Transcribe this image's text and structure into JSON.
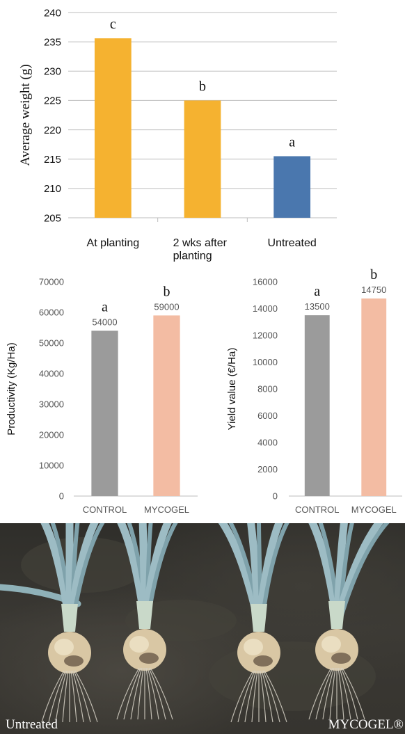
{
  "chart_data": [
    {
      "type": "bar",
      "title": "",
      "ylabel": "Average weight (g)",
      "xlabel": "",
      "categories": [
        "At planting",
        "2 wks after planting",
        "Untreated"
      ],
      "category_lines": [
        [
          "At planting"
        ],
        [
          "2 wks after",
          "planting"
        ],
        [
          "Untreated"
        ]
      ],
      "values": [
        235.6,
        225.0,
        215.5
      ],
      "significance_letters": [
        "c",
        "b",
        "a"
      ],
      "bar_colors": [
        "#f5b230",
        "#f5b230",
        "#4a77ae"
      ],
      "ylim": [
        205,
        240
      ],
      "yticks": [
        205,
        210,
        215,
        220,
        225,
        230,
        235,
        240
      ],
      "grid": true
    },
    {
      "type": "bar",
      "title": "",
      "ylabel": "Productivity (Kg/Ha)",
      "xlabel": "",
      "categories": [
        "CONTROL",
        "MYCOGEL"
      ],
      "values": [
        54000,
        59000
      ],
      "data_labels": [
        "54000",
        "59000"
      ],
      "significance_letters": [
        "a",
        "b"
      ],
      "bar_colors": [
        "#9b9b9b",
        "#f3bca3"
      ],
      "ylim": [
        0,
        70000
      ],
      "yticks": [
        0,
        10000,
        20000,
        30000,
        40000,
        50000,
        60000,
        70000
      ],
      "grid": false
    },
    {
      "type": "bar",
      "title": "",
      "ylabel": "Yield value (€/Ha)",
      "xlabel": "",
      "categories": [
        "CONTROL",
        "MYCOGEL"
      ],
      "values": [
        13500,
        14750
      ],
      "data_labels": [
        "13500",
        "14750"
      ],
      "significance_letters": [
        "a",
        "b"
      ],
      "bar_colors": [
        "#9b9b9b",
        "#f3bca3"
      ],
      "ylim": [
        0,
        16000
      ],
      "yticks": [
        0,
        2000,
        4000,
        6000,
        8000,
        10000,
        12000,
        14000,
        16000
      ],
      "grid": false
    }
  ],
  "photo": {
    "left_caption": "Untreated",
    "right_caption": "MYCOGEL®",
    "subject": "onion-bulbs"
  }
}
